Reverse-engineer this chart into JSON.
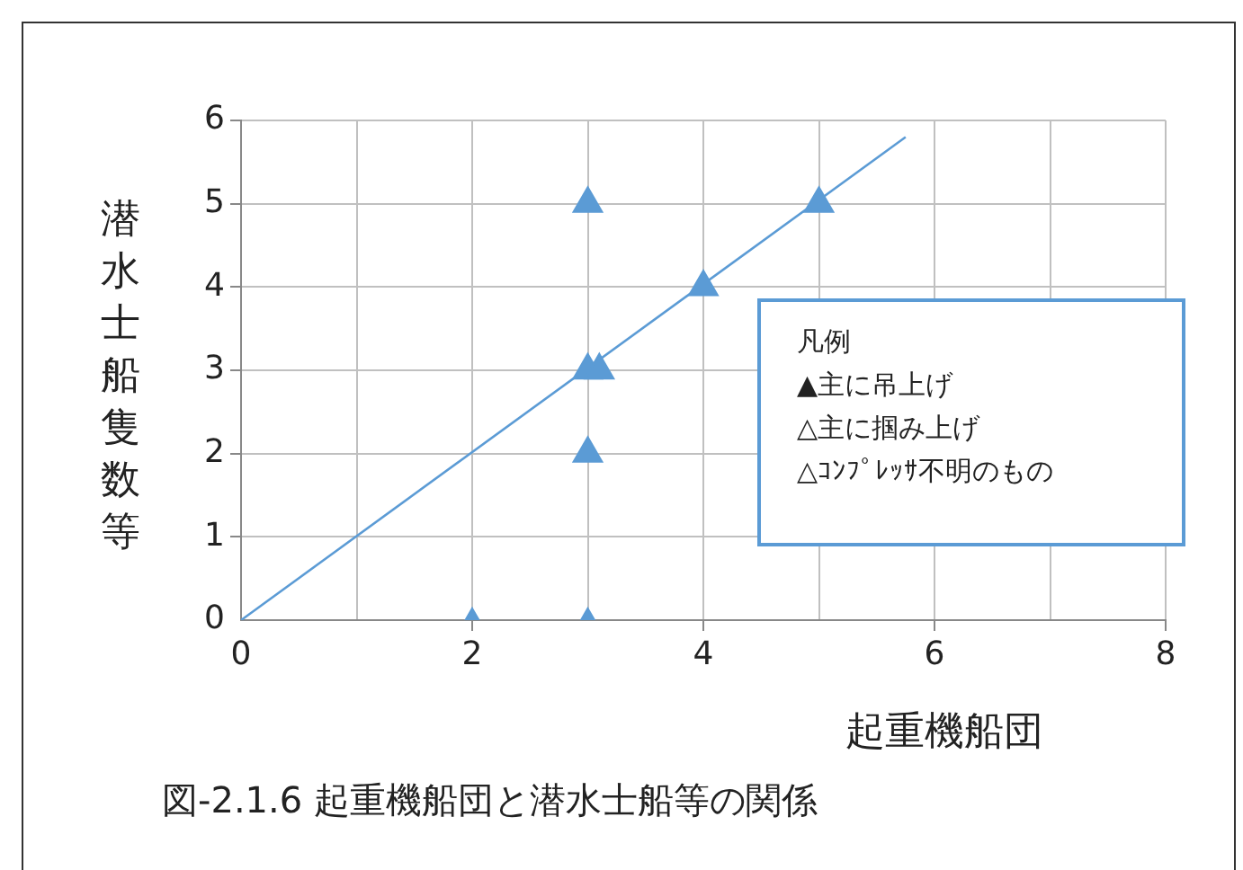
{
  "chart_data": {
    "type": "scatter",
    "title": "図-2.1.6 起重機船団と潜水士船等の関係",
    "xlabel": "起重機船団",
    "ylabel": "潜水士船隻数等",
    "annotations": [
      "凡例",
      "▲主に吊上げ",
      "△主に掴み上げ",
      "△ｺﾝﾌﾟﾚｯｻ不明のもの"
    ],
    "xlim": [
      0,
      8
    ],
    "xticks": [
      0,
      {
        "value": 1,
        "label": null
      },
      2,
      {
        "value": 3,
        "label": null
      },
      4,
      {
        "value": 5,
        "label": null
      },
      6,
      {
        "value": 7,
        "label": null
      },
      8
    ],
    "ylim": [
      0,
      6
    ],
    "yticks": [
      0,
      1,
      2,
      3,
      4,
      5,
      6
    ],
    "grid": true,
    "marker": "triangle",
    "series": [
      {
        "color": "#5b9bd5",
        "sizes": [
          1,
          1,
          1,
          1,
          1
        ],
        "x": [
          3,
          5,
          4,
          3,
          3.1
        ],
        "values": [
          5,
          5,
          4,
          3,
          3
        ]
      },
      {
        "color": "#5b9bd5",
        "sizes": [
          0.5
        ],
        "x": [
          2
        ],
        "values": [
          0
        ]
      },
      {
        "color": "#5b9bd5",
        "sizes": [
          1
        ],
        "x": [
          3
        ],
        "values": [
          2
        ]
      },
      {
        "color": "#5b9bd5",
        "sizes": [
          0.5
        ],
        "x": [
          3
        ],
        "values": [
          0
        ]
      },
      {
        "type": "line",
        "marker": "none",
        "color": "#5b9bd5",
        "x": [
          0,
          5.75
        ],
        "values": [
          0,
          5.8
        ]
      }
    ]
  }
}
